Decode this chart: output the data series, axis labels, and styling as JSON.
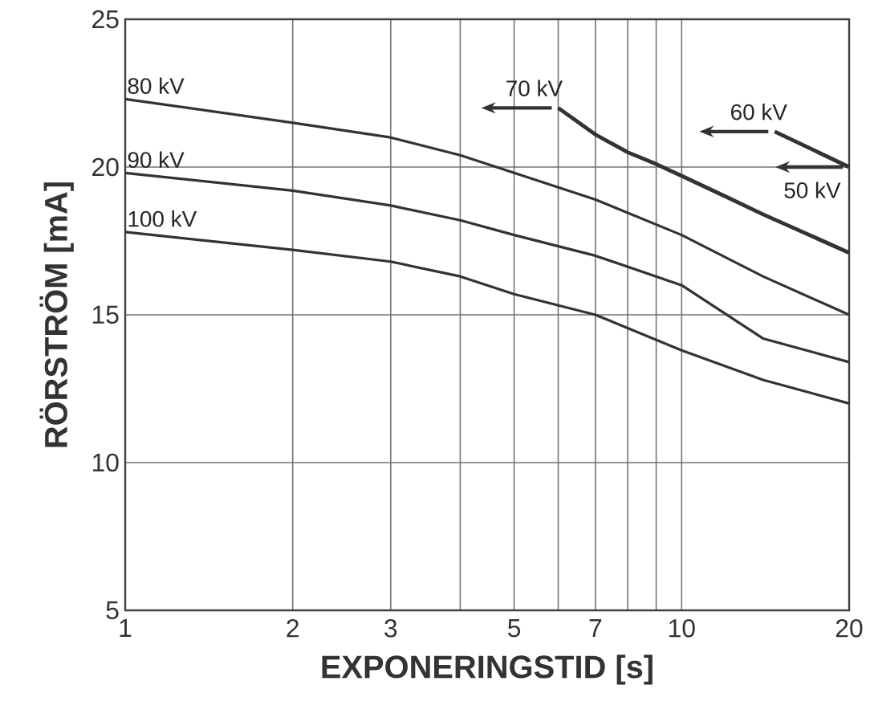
{
  "chart_data": {
    "type": "line",
    "xlabel": "EXPONERINGSTID [s]",
    "ylabel": "RÖRSTRÖM [mA]",
    "log": "x",
    "grid": true,
    "marker": "none",
    "line_style": "solid",
    "xlim": [
      1,
      20
    ],
    "ylim": [
      5,
      25
    ],
    "xticks": [
      1,
      2,
      3,
      {
        "value": 4,
        "label": null
      },
      5,
      {
        "value": 6,
        "label": null
      },
      7,
      {
        "value": 8,
        "label": null
      },
      {
        "value": 9,
        "label": null
      },
      10,
      20
    ],
    "yticks": [
      5,
      10,
      15,
      20,
      25
    ],
    "series": [
      {
        "name": "80 kV",
        "color": "#333333",
        "x": [
          1,
          2,
          3,
          4,
          5,
          7,
          10,
          14,
          20
        ],
        "values": [
          22.3,
          21.5,
          21.0,
          20.4,
          19.8,
          18.9,
          17.7,
          16.3,
          15.0
        ]
      },
      {
        "name": "90 kV",
        "color": "#333333",
        "x": [
          1,
          2,
          3,
          4,
          5,
          7,
          10,
          14,
          20
        ],
        "values": [
          19.8,
          19.2,
          18.7,
          18.2,
          17.7,
          17.0,
          16.0,
          14.2,
          13.4
        ]
      },
      {
        "name": "100 kV",
        "color": "#333333",
        "x": [
          1,
          2,
          3,
          4,
          5,
          7,
          10,
          14,
          20
        ],
        "values": [
          17.8,
          17.2,
          16.8,
          16.3,
          15.7,
          15.0,
          13.8,
          12.8,
          12.0
        ]
      },
      {
        "color": "#333333",
        "x": [
          6,
          7,
          8,
          9,
          10,
          12,
          14,
          20
        ],
        "values": [
          22.0,
          21.1,
          20.5,
          20.1,
          19.7,
          19.0,
          18.4,
          17.1
        ]
      },
      {
        "color": "#333333",
        "x": [
          14.7,
          20
        ],
        "values": [
          21.2,
          20.0
        ]
      }
    ],
    "annotations": [
      {
        "text": "70 kV",
        "x": 6,
        "y": 22
      },
      {
        "text": "60 kV",
        "x": 14.7,
        "y": 21.2
      },
      {
        "text": "50 kV",
        "x": 20,
        "y": 20.0
      }
    ]
  }
}
